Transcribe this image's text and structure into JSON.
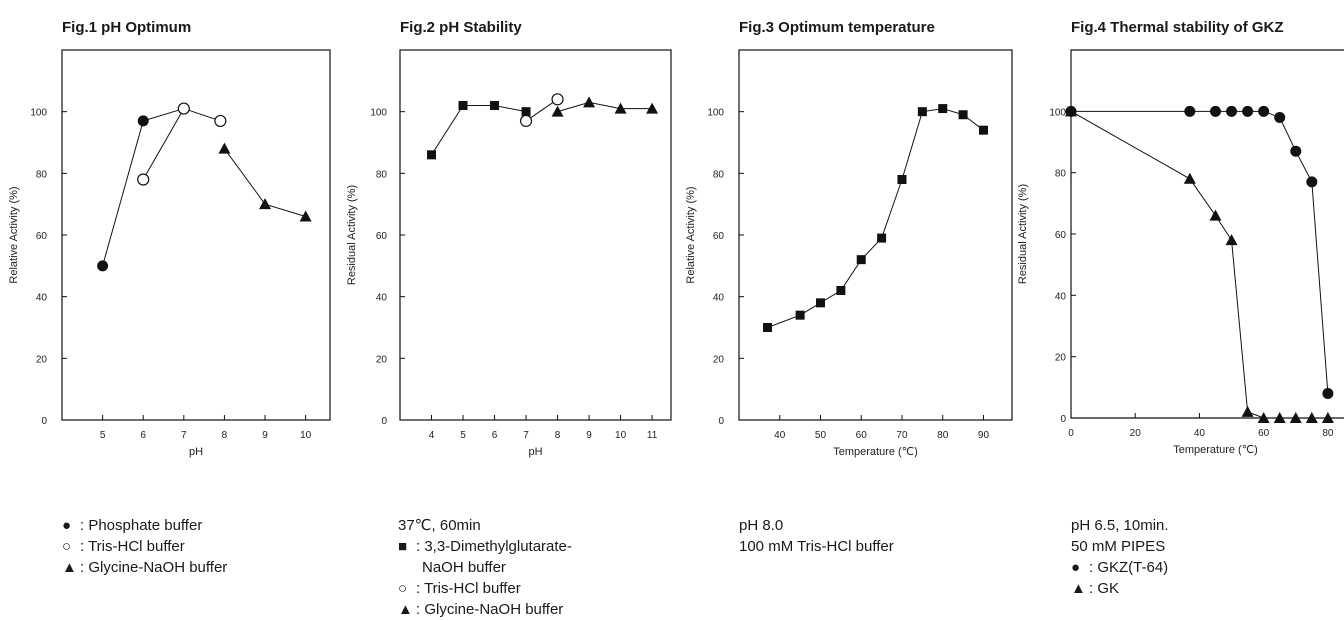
{
  "chart_data": [
    {
      "type": "scatter",
      "title": "Fig.1 pH Optimum",
      "xlabel": "pH",
      "ylabel": "Relative Activity (%)",
      "xlim": [
        4,
        10.6
      ],
      "ylim": [
        0,
        120
      ],
      "xticks": [
        5,
        6,
        7,
        8,
        9,
        10
      ],
      "yticks": [
        0,
        20,
        40,
        60,
        80,
        100
      ],
      "series": [
        {
          "name": "Phosphate buffer",
          "marker": "filled-circle",
          "x": [
            5,
            6,
            7
          ],
          "y": [
            50,
            97,
            101
          ]
        },
        {
          "name": "Tris-HCl buffer",
          "marker": "open-circle",
          "x": [
            6,
            7,
            7.9
          ],
          "y": [
            78,
            101,
            97
          ]
        },
        {
          "name": "Glycine-NaOH buffer",
          "marker": "filled-triangle",
          "x": [
            8,
            9,
            10
          ],
          "y": [
            88,
            70,
            66
          ]
        }
      ]
    },
    {
      "type": "scatter",
      "title": "Fig.2 pH Stability",
      "xlabel": "pH",
      "ylabel": "Residual Activity (%)",
      "xlim": [
        3,
        11.6
      ],
      "ylim": [
        0,
        120
      ],
      "xticks": [
        4,
        5,
        6,
        7,
        8,
        9,
        10,
        11
      ],
      "yticks": [
        0,
        20,
        40,
        60,
        80,
        100
      ],
      "series": [
        {
          "name": "3,3-Dimethylglutarate-NaOH buffer",
          "marker": "filled-square",
          "x": [
            4,
            5,
            6,
            7
          ],
          "y": [
            86,
            102,
            102,
            100
          ]
        },
        {
          "name": "Tris-HCl buffer",
          "marker": "open-circle",
          "x": [
            7,
            8
          ],
          "y": [
            97,
            104
          ]
        },
        {
          "name": "Glycine-NaOH buffer",
          "marker": "filled-triangle",
          "x": [
            8,
            9,
            10,
            11
          ],
          "y": [
            100,
            103,
            101,
            101
          ]
        }
      ]
    },
    {
      "type": "line",
      "title": "Fig.3 Optimum temperature",
      "xlabel": "Temperature (℃)",
      "ylabel": "Relative Activity (%)",
      "xlim": [
        30,
        97
      ],
      "ylim": [
        0,
        120
      ],
      "xticks": [
        40,
        50,
        60,
        70,
        80,
        90
      ],
      "yticks": [
        0,
        20,
        40,
        60,
        80,
        100
      ],
      "series": [
        {
          "name": "",
          "marker": "filled-square",
          "x": [
            37,
            45,
            50,
            55,
            60,
            65,
            70,
            75,
            80,
            85,
            90
          ],
          "y": [
            30,
            34,
            38,
            42,
            52,
            59,
            78,
            100,
            101,
            99,
            94
          ]
        }
      ]
    },
    {
      "type": "line",
      "title": "Fig.4 Thermal stability of GKZ",
      "xlabel": "Temperature (℃)",
      "ylabel": "Residual Activity (%)",
      "xlim": [
        0,
        90
      ],
      "ylim": [
        0,
        120
      ],
      "xticks": [
        0,
        20,
        40,
        60,
        80
      ],
      "yticks": [
        0,
        20,
        40,
        60,
        80,
        100
      ],
      "series": [
        {
          "name": "GKZ(T-64)",
          "marker": "filled-circle",
          "x": [
            0,
            37,
            45,
            50,
            55,
            60,
            65,
            70,
            75,
            80
          ],
          "y": [
            100,
            100,
            100,
            100,
            100,
            100,
            98,
            87,
            77,
            8
          ]
        },
        {
          "name": "GK",
          "marker": "filled-triangle",
          "x": [
            0,
            37,
            45,
            50,
            55,
            60,
            65,
            70,
            75,
            80
          ],
          "y": [
            100,
            78,
            66,
            58,
            2,
            0,
            0,
            0,
            0,
            0
          ]
        }
      ]
    }
  ],
  "notes": {
    "fig1": {
      "legend": [
        {
          "symbol": "●",
          "text": ": Phosphate buffer"
        },
        {
          "symbol": "○",
          "text": ": Tris-HCl buffer"
        },
        {
          "symbol": "▲",
          "text": ": Glycine-NaOH buffer"
        }
      ]
    },
    "fig2": {
      "condition": "37℃, 60min",
      "legend": [
        {
          "symbol": "■",
          "text": ": 3,3-Dimethylglutarate-"
        },
        {
          "symbol": "",
          "text": "NaOH buffer"
        },
        {
          "symbol": "○",
          "text": ": Tris-HCl buffer"
        },
        {
          "symbol": "▲",
          "text": ": Glycine-NaOH buffer"
        }
      ]
    },
    "fig3": {
      "line1": "pH 8.0",
      "line2": "100 mM Tris-HCl buffer"
    },
    "fig4": {
      "line1": "pH 6.5, 10min.",
      "line2": "50 mM PIPES",
      "legend": [
        {
          "symbol": "●",
          "text": ": GKZ(T-64)"
        },
        {
          "symbol": "▲",
          "text": ": GK"
        }
      ]
    }
  }
}
